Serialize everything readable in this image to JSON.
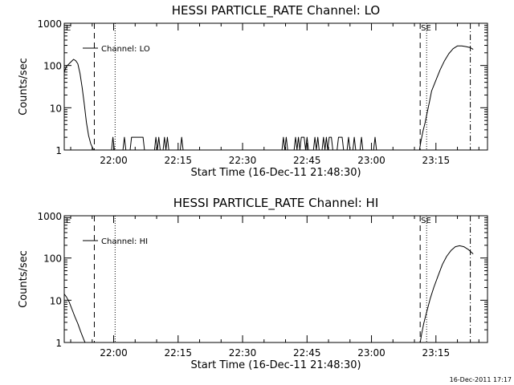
{
  "footer_timestamp": "16-Dec-2011 17:17",
  "chart_data": [
    {
      "type": "line",
      "title": "HESSI PARTICLE_RATE Channel: LO",
      "xlabel": "Start Time (16-Dec-11 21:48:30)",
      "ylabel": "Counts/sec",
      "y_scale": "log",
      "ylim": [
        1,
        1000
      ],
      "y_ticks": [
        1,
        10,
        100,
        1000
      ],
      "y_tick_labels": [
        "1",
        "10",
        "100",
        "1000"
      ],
      "xlim": [
        "21:48:30",
        "23:27:00"
      ],
      "x_ticks": [
        "22:00",
        "22:15",
        "22:30",
        "22:45",
        "23:00",
        "23:15"
      ],
      "legend": {
        "position": "top-left",
        "label": "Channel: LO"
      },
      "corner_labels": {
        "left": "E",
        "right": "SE"
      },
      "markers": [
        {
          "time": "21:55:30",
          "style": "dashed"
        },
        {
          "time": "22:00:20",
          "style": "dotted"
        },
        {
          "time": "23:11:20",
          "style": "dashed"
        },
        {
          "time": "23:12:50",
          "style": "dotted"
        },
        {
          "time": "23:23:00",
          "style": "dash-dot"
        }
      ],
      "series": [
        {
          "segments": [
            [
              [
                "21:48:30",
                70
              ],
              [
                "21:49:00",
                95
              ],
              [
                "21:50:00",
                120
              ],
              [
                "21:50:40",
                140
              ],
              [
                "21:51:10",
                130
              ],
              [
                "21:51:40",
                110
              ],
              [
                "21:52:10",
                65
              ],
              [
                "21:52:40",
                30
              ],
              [
                "21:53:10",
                12
              ],
              [
                "21:53:40",
                4.5
              ],
              [
                "21:54:10",
                2.2
              ],
              [
                "21:54:40",
                1.4
              ],
              [
                "21:55:20",
                1
              ]
            ],
            [
              [
                "21:59:30",
                1
              ],
              [
                "21:59:50",
                2
              ],
              [
                "22:00:10",
                1
              ]
            ],
            [
              [
                "22:02:10",
                1
              ],
              [
                "22:02:30",
                2
              ],
              [
                "22:02:50",
                1
              ]
            ],
            [
              [
                "22:03:50",
                1
              ],
              [
                "22:04:10",
                2
              ],
              [
                "22:06:50",
                2
              ],
              [
                "22:07:10",
                1
              ]
            ],
            [
              [
                "22:09:30",
                1
              ],
              [
                "22:09:50",
                2
              ],
              [
                "22:10:10",
                1
              ],
              [
                "22:10:30",
                2
              ],
              [
                "22:10:50",
                1
              ],
              [
                "22:11:30",
                1
              ],
              [
                "22:11:50",
                2
              ],
              [
                "22:12:10",
                1
              ],
              [
                "22:12:30",
                2
              ],
              [
                "22:12:50",
                1
              ]
            ],
            [
              [
                "22:15:30",
                1
              ],
              [
                "22:15:50",
                2
              ],
              [
                "22:16:10",
                1
              ]
            ],
            [
              [
                "22:39:10",
                1
              ],
              [
                "22:39:30",
                2
              ],
              [
                "22:39:50",
                1
              ],
              [
                "22:40:10",
                2
              ],
              [
                "22:40:30",
                1
              ]
            ],
            [
              [
                "22:42:00",
                1
              ],
              [
                "22:42:20",
                2
              ],
              [
                "22:42:40",
                1
              ],
              [
                "22:43:00",
                2
              ],
              [
                "22:43:20",
                1
              ],
              [
                "22:43:40",
                2
              ],
              [
                "22:44:20",
                2
              ],
              [
                "22:44:40",
                1
              ],
              [
                "22:45:00",
                2
              ],
              [
                "22:45:20",
                1
              ]
            ],
            [
              [
                "22:46:30",
                1
              ],
              [
                "22:46:50",
                2
              ],
              [
                "22:47:10",
                1
              ],
              [
                "22:47:30",
                2
              ],
              [
                "22:47:50",
                1
              ]
            ],
            [
              [
                "22:48:30",
                1
              ],
              [
                "22:48:50",
                2
              ],
              [
                "22:49:10",
                1
              ],
              [
                "22:49:30",
                2
              ],
              [
                "22:49:50",
                1
              ],
              [
                "22:50:10",
                2
              ],
              [
                "22:50:40",
                2
              ],
              [
                "22:51:00",
                1
              ]
            ],
            [
              [
                "22:52:00",
                1
              ],
              [
                "22:52:20",
                2
              ],
              [
                "22:53:10",
                2
              ],
              [
                "22:53:30",
                1
              ]
            ],
            [
              [
                "22:54:20",
                1
              ],
              [
                "22:54:40",
                2
              ],
              [
                "22:55:00",
                1
              ]
            ],
            [
              [
                "22:55:40",
                1
              ],
              [
                "22:56:00",
                2
              ],
              [
                "22:56:20",
                1
              ]
            ],
            [
              [
                "22:57:20",
                1
              ],
              [
                "22:57:40",
                2
              ],
              [
                "22:58:00",
                1
              ]
            ],
            [
              [
                "23:00:30",
                1
              ],
              [
                "23:00:50",
                2
              ],
              [
                "23:01:10",
                1
              ]
            ],
            [
              [
                "23:11:10",
                1
              ],
              [
                "23:11:30",
                1.6
              ],
              [
                "23:12:00",
                2.8
              ],
              [
                "23:12:30",
                4.5
              ],
              [
                "23:13:00",
                8
              ],
              [
                "23:13:30",
                14
              ],
              [
                "23:14:00",
                25
              ],
              [
                "23:15:00",
                45
              ],
              [
                "23:16:00",
                80
              ],
              [
                "23:17:00",
                130
              ],
              [
                "23:18:00",
                190
              ],
              [
                "23:19:00",
                250
              ],
              [
                "23:20:00",
                290
              ],
              [
                "23:21:00",
                290
              ],
              [
                "23:22:00",
                280
              ],
              [
                "23:23:00",
                265
              ],
              [
                "23:23:40",
                240
              ]
            ]
          ]
        }
      ]
    },
    {
      "type": "line",
      "title": "HESSI PARTICLE_RATE Channel: HI",
      "xlabel": "Start Time (16-Dec-11 21:48:30)",
      "ylabel": "Counts/sec",
      "y_scale": "log",
      "ylim": [
        1,
        1000
      ],
      "y_ticks": [
        1,
        10,
        100,
        1000
      ],
      "y_tick_labels": [
        "1",
        "10",
        "100",
        "1000"
      ],
      "xlim": [
        "21:48:30",
        "23:27:00"
      ],
      "x_ticks": [
        "22:00",
        "22:15",
        "22:30",
        "22:45",
        "23:00",
        "23:15"
      ],
      "legend": {
        "position": "top-left",
        "label": "Channel: HI"
      },
      "corner_labels": {
        "left": "E",
        "right": "SE"
      },
      "markers": [
        {
          "time": "21:55:30",
          "style": "dashed"
        },
        {
          "time": "22:00:20",
          "style": "dotted"
        },
        {
          "time": "23:11:20",
          "style": "dashed"
        },
        {
          "time": "23:12:50",
          "style": "dotted"
        },
        {
          "time": "23:23:00",
          "style": "dash-dot"
        }
      ],
      "series": [
        {
          "segments": [
            [
              [
                "21:48:30",
                14
              ],
              [
                "21:49:00",
                12
              ],
              [
                "21:49:40",
                9
              ],
              [
                "21:50:20",
                6
              ],
              [
                "21:51:00",
                4
              ],
              [
                "21:51:40",
                2.8
              ],
              [
                "21:52:20",
                1.8
              ],
              [
                "21:53:00",
                1.2
              ],
              [
                "21:53:20",
                1
              ]
            ],
            [
              [
                "23:11:20",
                1
              ],
              [
                "23:11:40",
                1.6
              ],
              [
                "23:12:10",
                2.8
              ],
              [
                "23:12:40",
                4.5
              ],
              [
                "23:13:10",
                7
              ],
              [
                "23:13:40",
                11
              ],
              [
                "23:14:30",
                20
              ],
              [
                "23:15:30",
                38
              ],
              [
                "23:16:30",
                70
              ],
              [
                "23:17:30",
                110
              ],
              [
                "23:18:30",
                150
              ],
              [
                "23:19:30",
                185
              ],
              [
                "23:20:30",
                195
              ],
              [
                "23:21:30",
                185
              ],
              [
                "23:22:30",
                160
              ],
              [
                "23:23:40",
                125
              ]
            ]
          ]
        }
      ]
    }
  ]
}
